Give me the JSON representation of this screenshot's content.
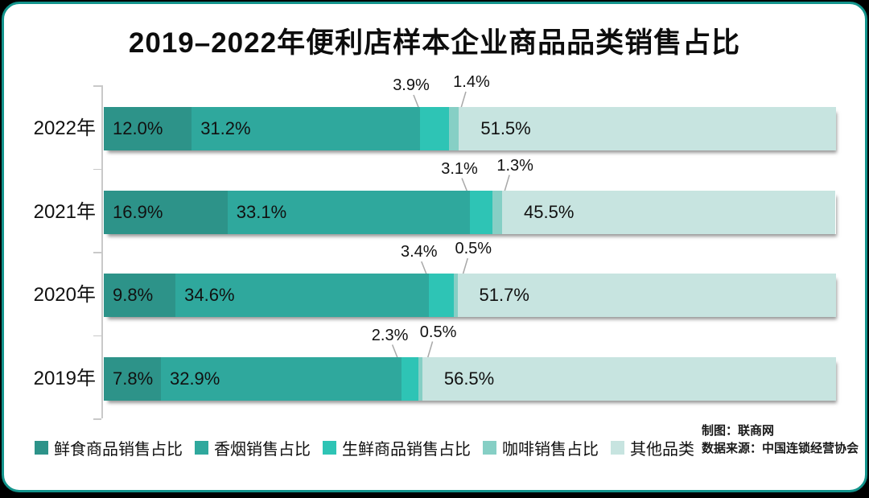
{
  "page": {
    "accent_border_color": "#12948C",
    "background_color": "#000000",
    "credits": {
      "line1": "制图：联商网",
      "line2": "数据来源：中国连锁经营协会"
    }
  },
  "chart_data": {
    "type": "bar",
    "orientation": "horizontal",
    "stacked": true,
    "title": "2019–2022年便利店样本企业商品品类销售占比",
    "unit": "%",
    "categories": [
      "2022年",
      "2021年",
      "2020年",
      "2019年"
    ],
    "series": [
      {
        "name": "鲜食商品销售占比",
        "color": "#2D9389",
        "values": [
          12.0,
          16.9,
          9.8,
          7.8
        ]
      },
      {
        "name": "香烟销售占比",
        "color": "#2FA89D",
        "values": [
          31.2,
          33.1,
          34.6,
          32.9
        ]
      },
      {
        "name": "生鲜商品销售占比",
        "color": "#2EC4B5",
        "values": [
          3.9,
          3.1,
          3.4,
          2.3
        ]
      },
      {
        "name": "咖啡销售占比",
        "color": "#86CFC5",
        "values": [
          1.4,
          1.3,
          0.5,
          0.5
        ]
      },
      {
        "name": "其他品类",
        "color": "#C7E4E0",
        "values": [
          51.5,
          45.5,
          51.7,
          56.5
        ]
      }
    ],
    "x_axis": {
      "min": 0,
      "max": 100,
      "visible_ticks": false
    },
    "grid": false,
    "legend_position": "bottom-left",
    "value_label_format": "one-decimal-percent",
    "callout_series_indexes": [
      2,
      3
    ],
    "leader_line_color": "#A8A8A8",
    "axis_color": "#C9C9C9"
  }
}
